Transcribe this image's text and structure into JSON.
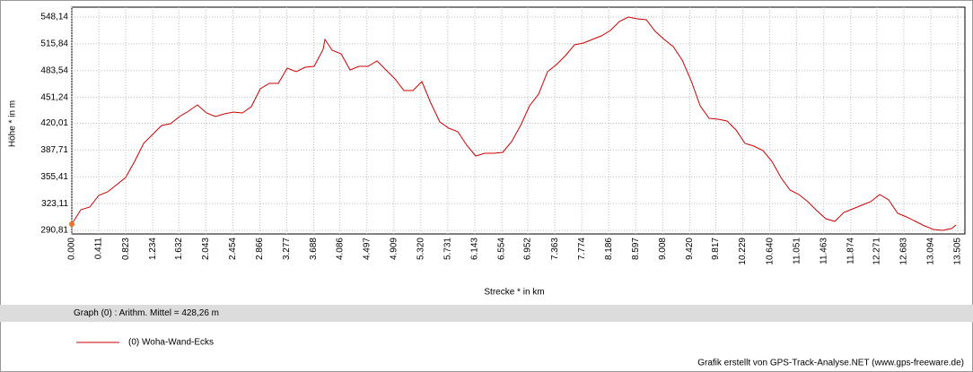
{
  "chart_data": {
    "type": "line",
    "y_label": "Höhe *  in  m",
    "x_label": "Strecke *  in  km",
    "stats": "Graph (0) :  Arithm. Mittel = 428,26 m",
    "credit": "Grafik erstellt von GPS-Track-Analyse.NET (www.gps-freeware.de)",
    "grid": true,
    "xlim": [
      0,
      13.505
    ],
    "ylim": [
      290.81,
      548.14
    ],
    "xticks": [
      {
        "value": 0,
        "label": "0.000"
      },
      0.411,
      0.823,
      1.234,
      1.632,
      2.043,
      2.454,
      2.866,
      3.277,
      3.688,
      4.086,
      4.497,
      4.909,
      {
        "value": 5.32,
        "label": "5.320"
      },
      5.731,
      6.143,
      6.554,
      6.952,
      7.363,
      7.774,
      8.186,
      8.597,
      9.008,
      {
        "value": 9.42,
        "label": "9.420"
      },
      9.817,
      10.229,
      {
        "value": 10.64,
        "label": "10.640"
      },
      11.051,
      11.463,
      11.874,
      12.271,
      12.683,
      13.094,
      13.505
    ],
    "yticks": [
      {
        "value": 290.81,
        "label": "290,81"
      },
      {
        "value": 323.11,
        "label": "323,11"
      },
      {
        "value": 355.41,
        "label": "355,41"
      },
      {
        "value": 387.71,
        "label": "387,71"
      },
      {
        "value": 420.01,
        "label": "420,01"
      },
      {
        "value": 451.24,
        "label": "451,24"
      },
      {
        "value": 483.54,
        "label": "483,54"
      },
      {
        "value": 515.84,
        "label": "515,84"
      },
      {
        "value": 548.14,
        "label": "548,14"
      }
    ],
    "x": [
      0,
      0.137,
      0.274,
      0.41,
      0.547,
      0.684,
      0.821,
      0.958,
      1.095,
      1.231,
      1.368,
      1.505,
      1.642,
      1.779,
      1.916,
      2.052,
      2.189,
      2.326,
      2.463,
      2.6,
      2.737,
      2.873,
      3.01,
      3.147,
      3.284,
      3.421,
      3.558,
      3.694,
      3.831,
      3.859,
      3.968,
      4.105,
      4.242,
      4.379,
      4.515,
      4.652,
      4.789,
      4.926,
      5.063,
      5.2,
      5.336,
      5.473,
      5.61,
      5.747,
      5.884,
      6.021,
      6.157,
      6.294,
      6.431,
      6.568,
      6.705,
      6.842,
      6.978,
      7.115,
      7.252,
      7.389,
      7.526,
      7.663,
      7.799,
      7.936,
      8.073,
      8.21,
      8.347,
      8.484,
      8.62,
      8.757,
      8.894,
      9.031,
      9.168,
      9.305,
      9.441,
      9.578,
      9.715,
      9.852,
      9.989,
      10.126,
      10.262,
      10.399,
      10.536,
      10.673,
      10.81,
      10.947,
      11.083,
      11.22,
      11.357,
      11.494,
      11.631,
      11.768,
      11.904,
      12.041,
      12.178,
      12.315,
      12.452,
      12.589,
      12.725,
      12.862,
      12.999,
      13.136,
      13.273,
      13.41,
      13.478
    ],
    "series": [
      {
        "name": "(0) Woha-Wand-Ecks",
        "color": "#cc0000",
        "values": [
          298.4,
          315.7,
          318.9,
          333.0,
          337.3,
          346.0,
          354.6,
          374.1,
          395.7,
          406.5,
          417.3,
          419.5,
          428.1,
          434.6,
          442.2,
          432.4,
          428.1,
          431.4,
          433.5,
          432.4,
          440.0,
          461.6,
          468.1,
          468.1,
          486.5,
          482.2,
          487.6,
          488.7,
          509.2,
          521.1,
          508.1,
          503.8,
          484.4,
          488.7,
          488.7,
          495.2,
          484.4,
          473.5,
          459.5,
          459.5,
          470.3,
          444.3,
          421.6,
          414.1,
          409.8,
          393.5,
          380.6,
          383.8,
          383.8,
          384.9,
          397.9,
          417.3,
          441.1,
          455.1,
          482.2,
          490.8,
          501.6,
          514.6,
          516.8,
          521.1,
          525.4,
          531.9,
          542.7,
          548.1,
          546.0,
          544.9,
          530.8,
          521.1,
          512.5,
          496.2,
          471.4,
          441.1,
          426.0,
          424.9,
          422.7,
          411.9,
          395.7,
          392.4,
          387.0,
          374.1,
          354.6,
          339.5,
          334.1,
          325.4,
          314.6,
          304.9,
          301.6,
          312.4,
          316.8,
          321.1,
          325.4,
          334.1,
          327.6,
          311.4,
          307.0,
          301.6,
          296.2,
          291.9,
          290.8,
          293.0,
          297.3
        ]
      }
    ]
  }
}
